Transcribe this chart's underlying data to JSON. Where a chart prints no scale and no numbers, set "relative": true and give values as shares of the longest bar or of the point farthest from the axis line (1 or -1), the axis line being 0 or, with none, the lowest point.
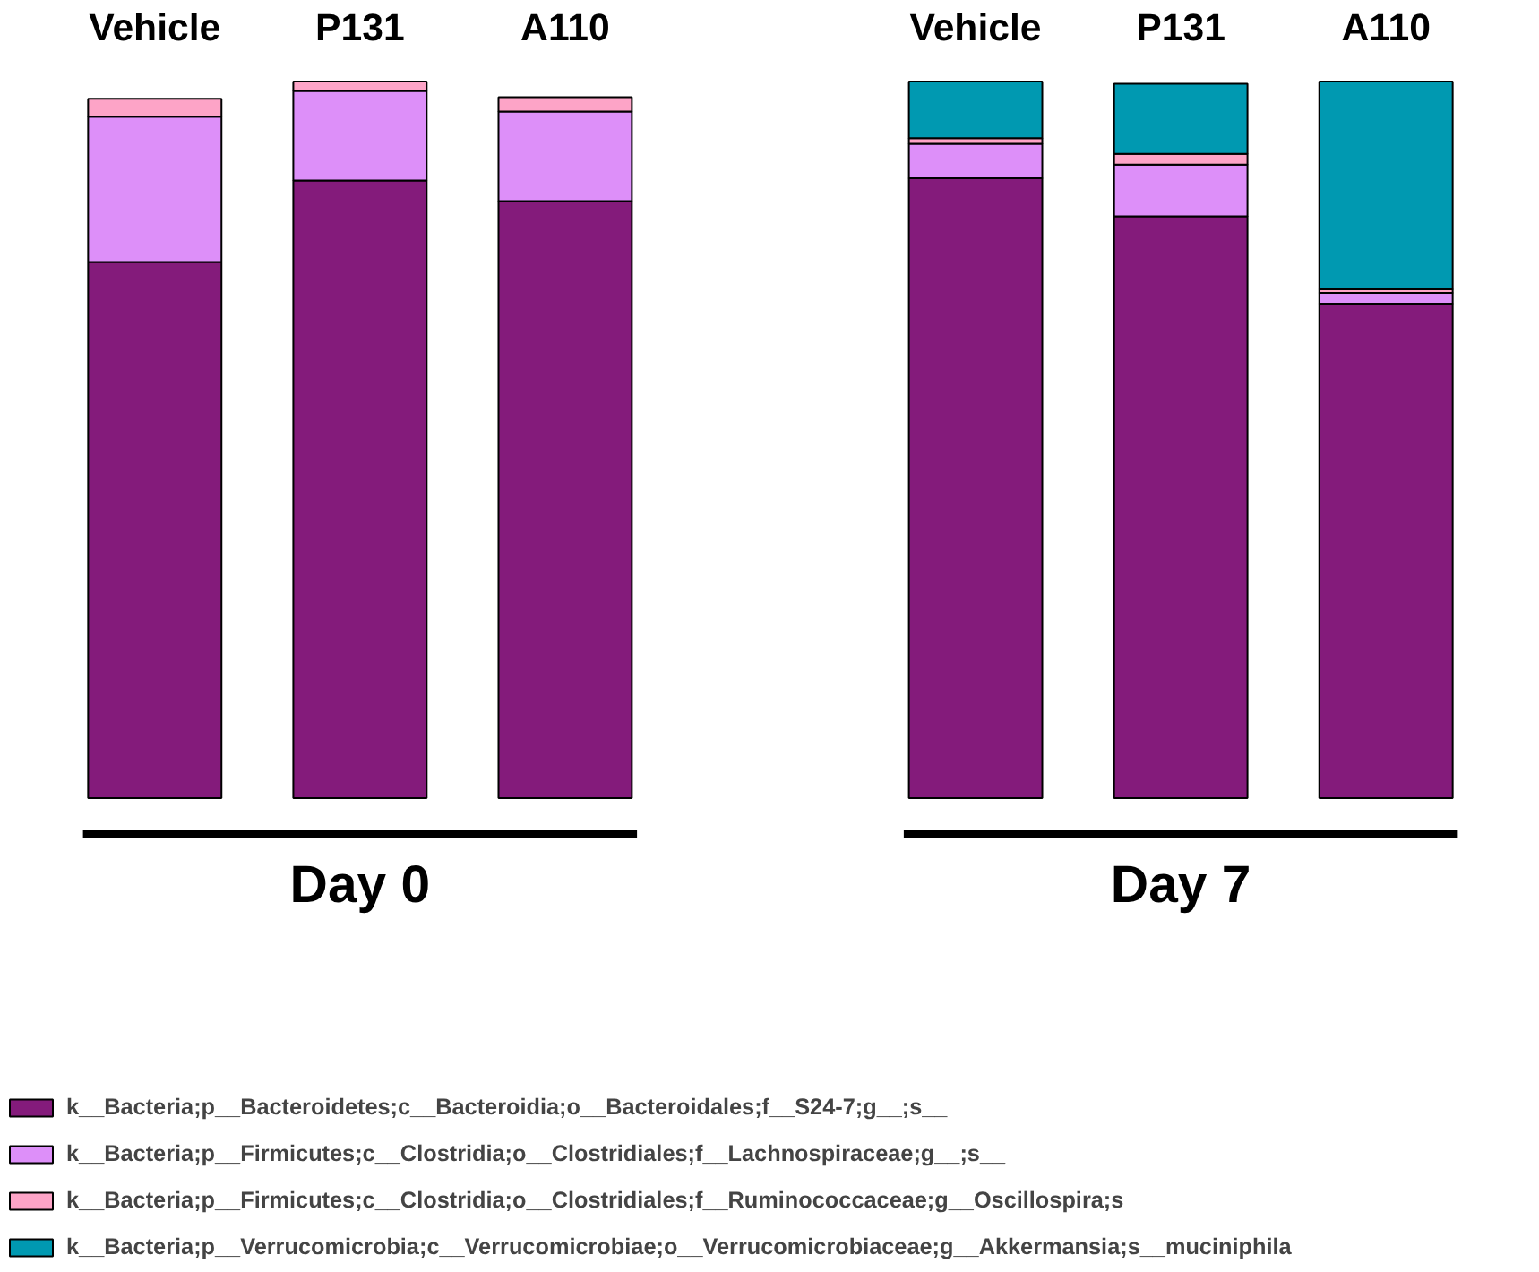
{
  "chart_data": {
    "type": "bar",
    "stacked": true,
    "relative": true,
    "legend": "bottom",
    "categories": [
      "Vehicle",
      "P131",
      "A110",
      null,
      "Vehicle",
      "P131",
      "A110"
    ],
    "annotations": [
      "Day 0",
      "Day 7"
    ],
    "series": [
      {
        "name": "k__Bacteria;p__Bacteroidetes;c__Bacteroidia;o__Bacteroidales;f__S24-7;g__;s__",
        "color": "#841b7b",
        "values": [
          0.748,
          0.862,
          0.833,
          null,
          0.865,
          0.812,
          0.69
        ]
      },
      {
        "name": "k__Bacteria;p__Firmicutes;c__Clostridia;o__Clostridiales;f__Lachnospiraceae;g__;s__",
        "color": "#dd8ff9",
        "values": [
          0.203,
          0.125,
          0.125,
          null,
          0.048,
          0.072,
          0.015
        ]
      },
      {
        "name": "k__Bacteria;p__Firmicutes;c__Clostridia;o__Clostridiales;f__Ruminococcaceae;g__Oscillospira;s",
        "color": "#fda4c7",
        "values": [
          0.025,
          0.013,
          0.02,
          null,
          0.008,
          0.015,
          0.005
        ]
      },
      {
        "name": "k__Bacteria;p__Verrucomicrobia;c__Verrucomicrobiae;o__Verrucomicrobiaceae;g__Akkermansia;s__muciniphila",
        "color": "#0099b1",
        "values": [
          null,
          null,
          null,
          null,
          0.079,
          0.098,
          0.29
        ]
      }
    ]
  }
}
